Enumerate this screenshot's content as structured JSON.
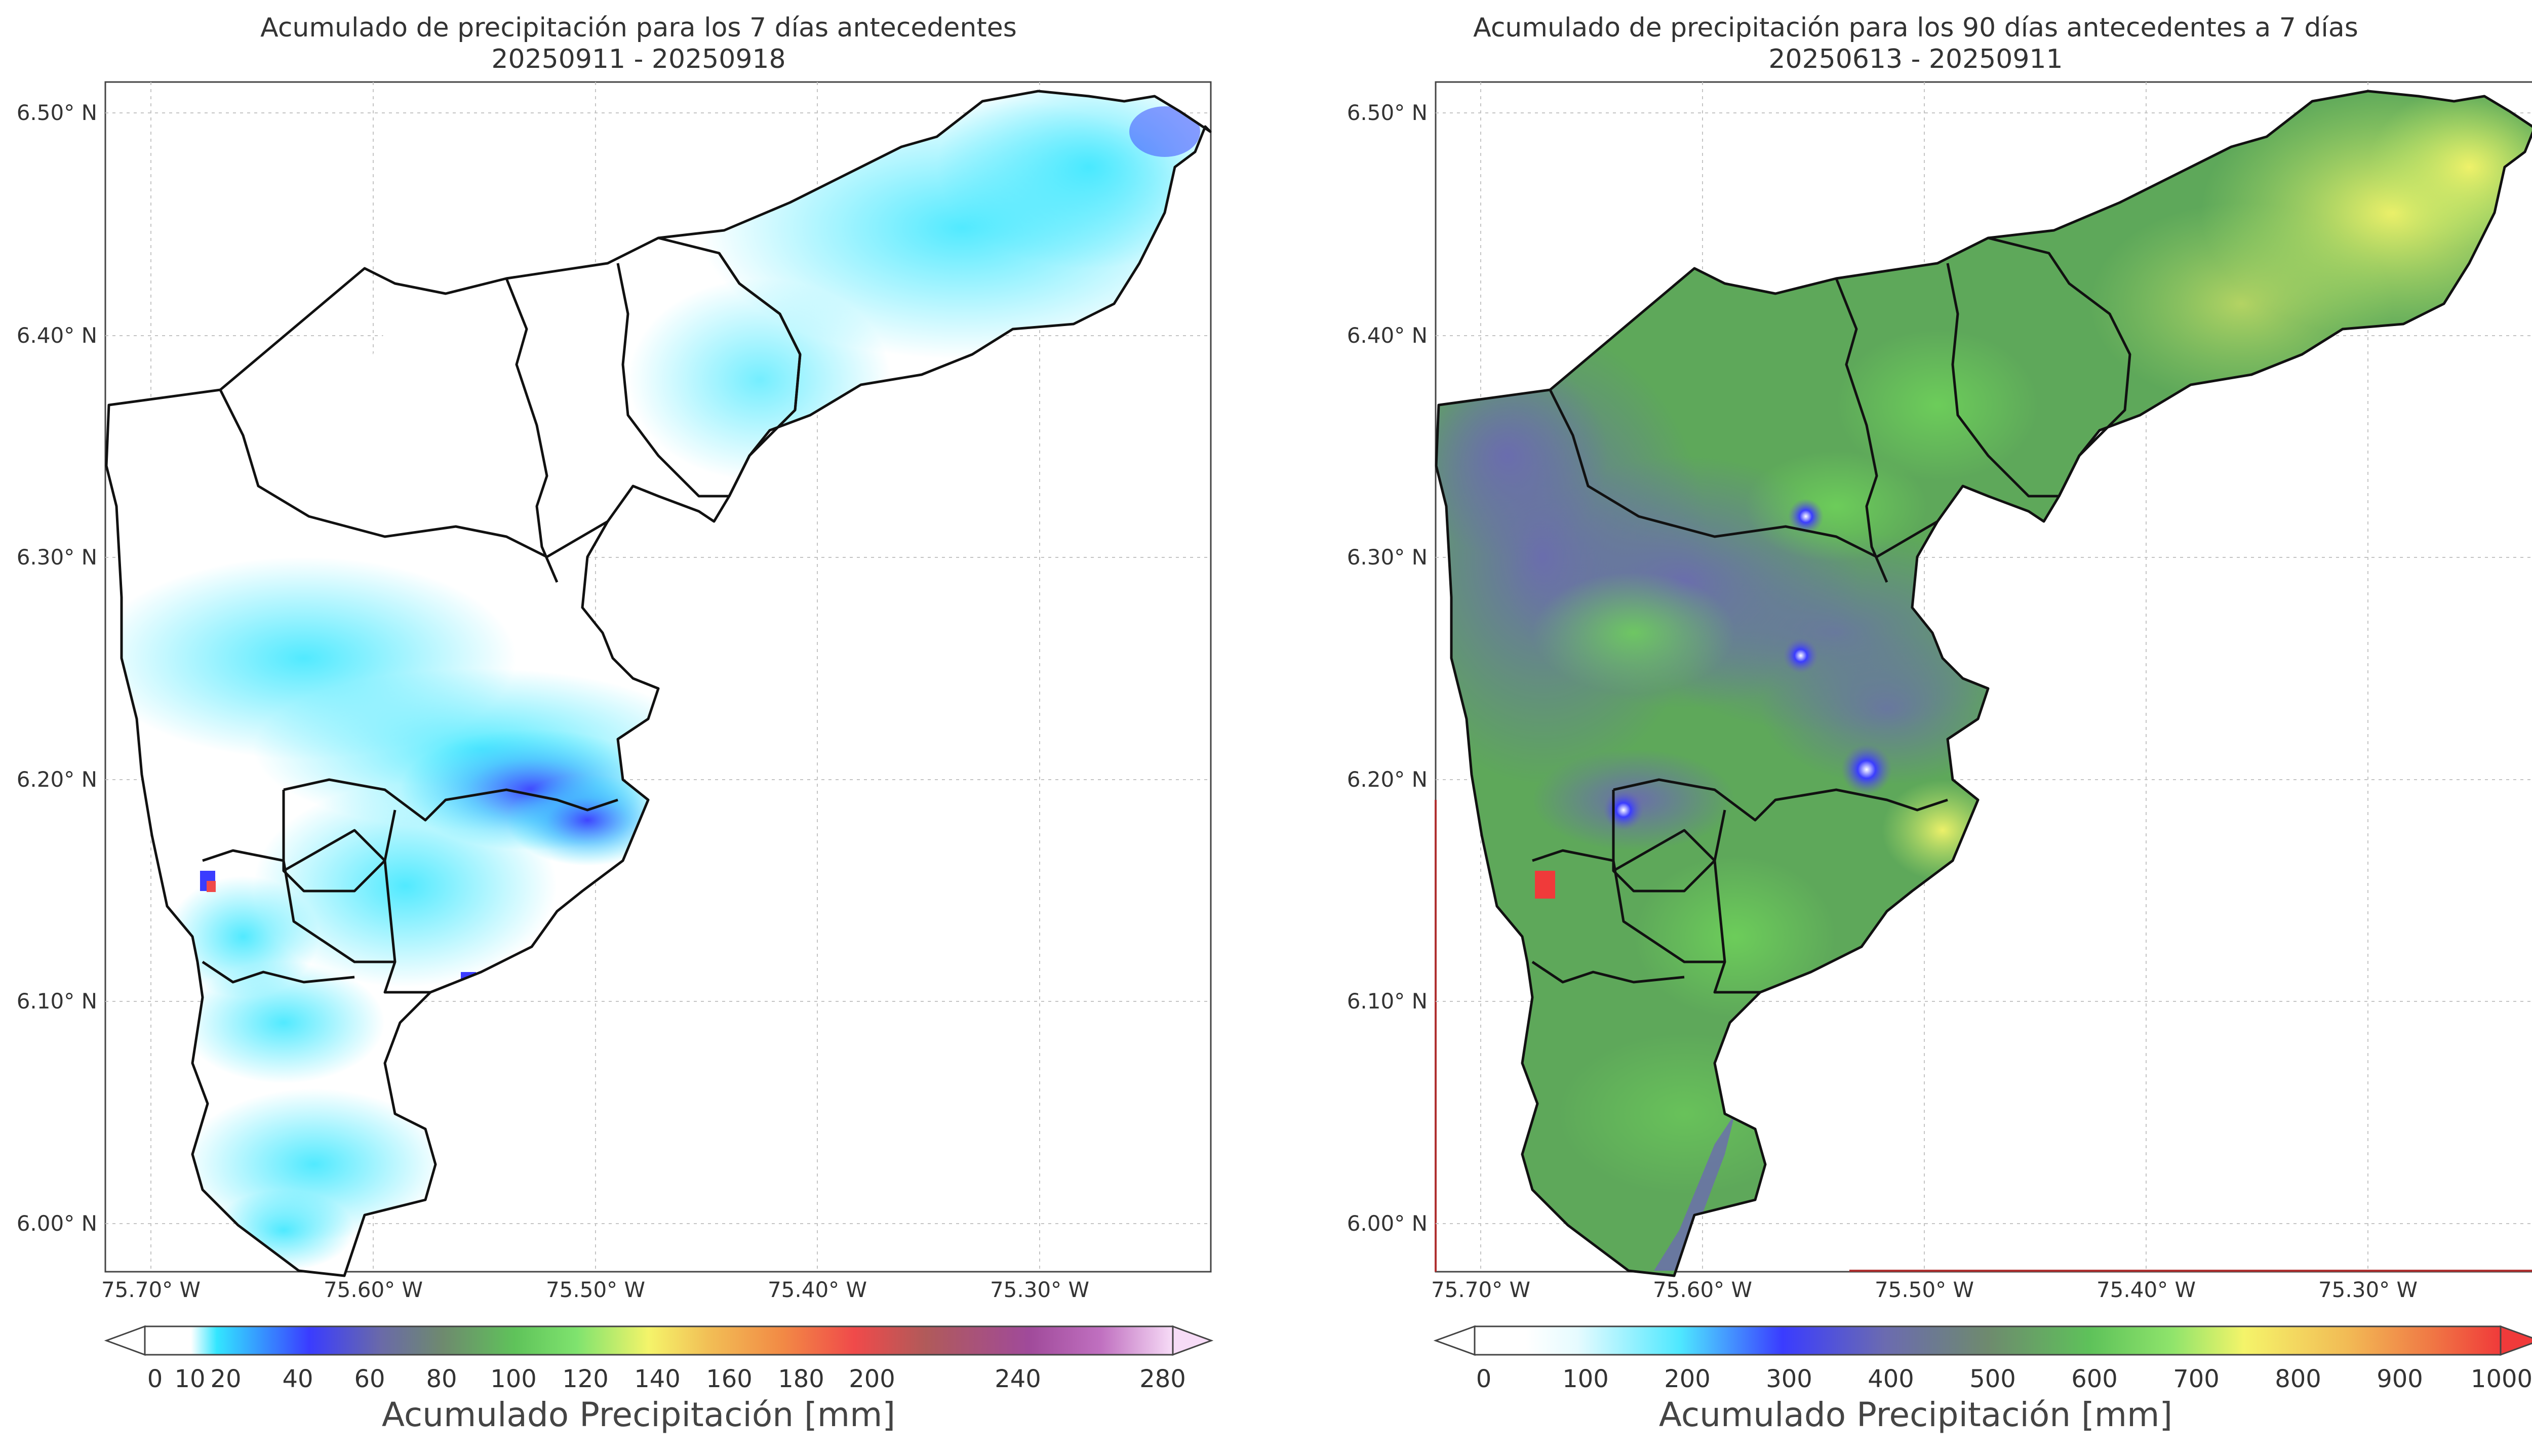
{
  "panels": [
    {
      "title_line1": "Acumulado de precipitación para los 7 días antecedentes",
      "title_line2": "20250911 - 20250918",
      "lat_ticks": [
        "6.50° N",
        "6.40° N",
        "6.30° N",
        "6.20° N",
        "6.10° N",
        "6.00° N"
      ],
      "lon_ticks": [
        "75.70° W",
        "75.60° W",
        "75.50° W",
        "75.40° W",
        "75.30° W"
      ],
      "colorbar_ticks": [
        "0",
        "10",
        "20",
        "40",
        "60",
        "80",
        "100",
        "120",
        "140",
        "160",
        "180",
        "200",
        "240",
        "280"
      ],
      "colorbar_label": "Acumulado Precipitación [mm]"
    },
    {
      "title_line1": "Acumulado de precipitación para los 90 días antecedentes a 7 días",
      "title_line2": "20250613 - 20250911",
      "lat_ticks": [
        "6.50° N",
        "6.40° N",
        "6.30° N",
        "6.20° N",
        "6.10° N",
        "6.00° N"
      ],
      "lon_ticks": [
        "75.70° W",
        "75.60° W",
        "75.50° W",
        "75.40° W",
        "75.30° W"
      ],
      "colorbar_ticks": [
        "0",
        "100",
        "200",
        "300",
        "400",
        "500",
        "600",
        "700",
        "800",
        "900",
        "1000"
      ],
      "colorbar_label": "Acumulado Precipitación [mm]"
    }
  ],
  "colors": {
    "outline": "#111111",
    "grid": "#bbbbbb",
    "left_scale": [
      "#ffffff",
      "#ffffff",
      "#33e6ff",
      "#3a3cff",
      "#6a6aa8",
      "#6e8a6e",
      "#5fc35a",
      "#7fe36e",
      "#f4f46a",
      "#f2bd55",
      "#f28a45",
      "#f04a4a",
      "#b05a5a",
      "#a04a9a",
      "#c070c0",
      "#f7dcf7"
    ],
    "right_scale": [
      "#ffffff",
      "#e6fbff",
      "#4ee8ff",
      "#3a3cff",
      "#6b6bb0",
      "#6e8a6e",
      "#5ec25a",
      "#8fe46b",
      "#f4f46a",
      "#f2bb55",
      "#f07a45",
      "#f03a3a"
    ]
  }
}
